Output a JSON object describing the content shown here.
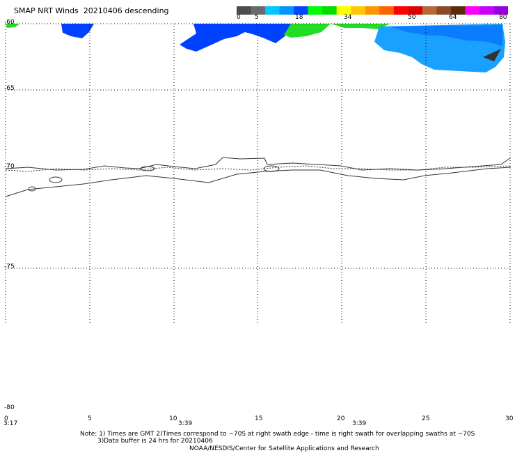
{
  "header": {
    "title": "SMAP NRT Winds  20210406 descending"
  },
  "colorbar": {
    "labels": [
      "0",
      "5",
      "18",
      "34",
      "50",
      "64",
      "80"
    ],
    "colors": [
      "#4d4d4d",
      "#6a6a6a",
      "#00c8ff",
      "#0096ff",
      "#0046ff",
      "#00ff00",
      "#00dd00",
      "#ffff00",
      "#ffc800",
      "#ff9600",
      "#ff6400",
      "#ff0000",
      "#dd0000",
      "#b46a3a",
      "#8a4a2a",
      "#5a2a10",
      "#ff00ff",
      "#c800ff",
      "#9600dd"
    ]
  },
  "axes": {
    "lat_labels": [
      "-60",
      "-65",
      "-70",
      "-75",
      "-80"
    ],
    "lon_labels": [
      "0",
      "5",
      "10",
      "15",
      "20",
      "25",
      "30"
    ],
    "time_labels": [
      "3:17",
      "3:39",
      "3:39"
    ]
  },
  "notes": {
    "line1": "Note: 1) Times are GMT 2)Times correspond to ~70S at right swath edge - time is right swath for overlapping swaths at ~70S",
    "line2": "3)Data buffer is 24 hrs for 20210406",
    "line3": "NOAA/NESDIS/Center for Satellite Applications and Research"
  },
  "wind_colors": {
    "blue": "#0040ff",
    "midblue": "#0a7dff",
    "lightblue": "#1aa0ff",
    "green": "#22dd22",
    "dark": "#333333"
  }
}
